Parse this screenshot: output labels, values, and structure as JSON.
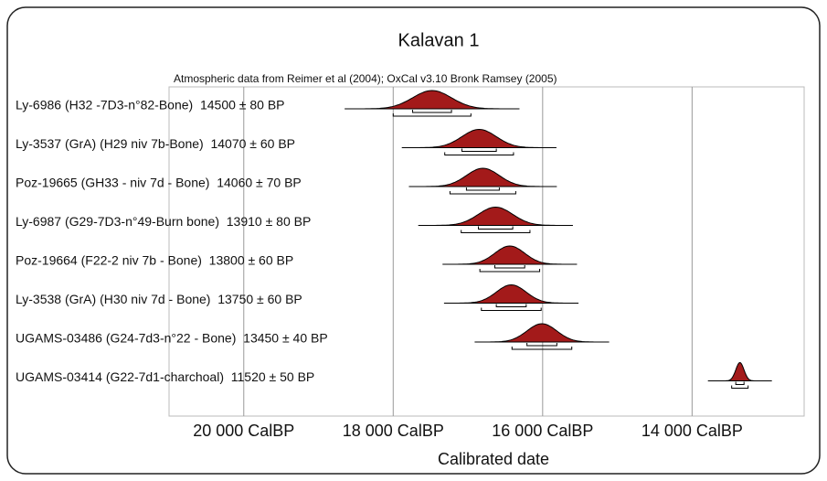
{
  "chart_data": {
    "type": "oxcal",
    "title": "Kalavan 1",
    "subtitle": "Atmospheric data from Reimer et al (2004); OxCal v3.10 Bronk Ramsey (2005)",
    "x_label": "Calibrated date",
    "xlim": [
      21000,
      12500
    ],
    "xticks": [
      {
        "value": 20000,
        "label": "20 000 CalBP"
      },
      {
        "value": 18000,
        "label": "18 000 CalBP"
      },
      {
        "value": 16000,
        "label": "16 000 CalBP"
      },
      {
        "value": 14000,
        "label": "14 000 CalBP"
      }
    ],
    "grid": true,
    "color": "#a31a1a",
    "samples": [
      {
        "label": "Ly-6986 (H32 -7D3-n°82-Bone)  14500 ± 80 BP",
        "mean": 17480,
        "sd": 260
      },
      {
        "label": "Ly-3537 (GrA) (H29 niv 7b-Bone)  14070 ± 60 BP",
        "mean": 16850,
        "sd": 230
      },
      {
        "label": "Poz-19665 (GH33 - niv 7d - Bone)  14060 ± 70 BP",
        "mean": 16800,
        "sd": 220
      },
      {
        "label": "Ly-6987 (G29-7D3-n°49-Burn bone)  13910 ± 80 BP",
        "mean": 16630,
        "sd": 230
      },
      {
        "label": "Poz-19664 (F22-2 niv 7b - Bone)  13800 ± 60 BP",
        "mean": 16440,
        "sd": 200
      },
      {
        "label": "Ly-3538 (GrA) (H30 niv 7d - Bone)  13750 ± 60 BP",
        "mean": 16420,
        "sd": 200
      },
      {
        "label": "UGAMS-03486 (G24-7d3-n°22 - Bone)  13450 ± 40 BP",
        "mean": 16010,
        "sd": 200
      },
      {
        "label": "UGAMS-03414 (G22-7d1-charchoal)  11520 ± 50 BP",
        "mean": 13360,
        "sd": 55
      }
    ]
  }
}
